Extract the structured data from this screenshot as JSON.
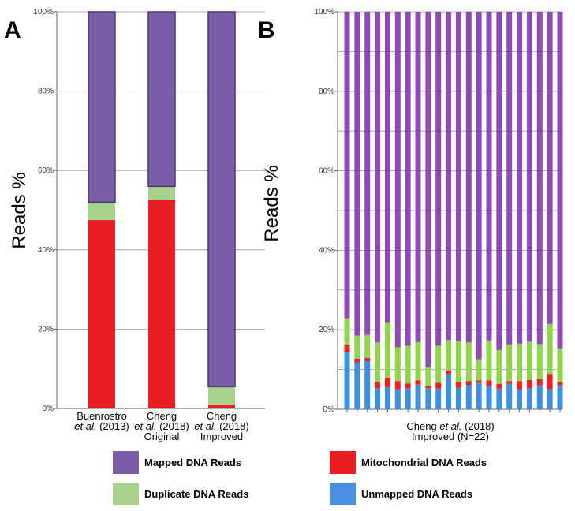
{
  "chart_data": [
    {
      "type": "bar",
      "stacked": true,
      "panel_label": "A",
      "ylabel": "Reads %",
      "ylim": [
        0,
        100
      ],
      "yticks": [
        "0%",
        "20%",
        "40%",
        "60%",
        "80%",
        "100%"
      ],
      "grid": true,
      "categories": [
        [
          "Buenrostro",
          "et al. (2013)"
        ],
        [
          "Cheng",
          "et al. (2018)",
          "Original"
        ],
        [
          "Cheng",
          "et al. (2018)",
          "Improved"
        ]
      ],
      "series": [
        {
          "name": "Unmapped DNA Reads",
          "values": [
            0,
            0,
            0
          ]
        },
        {
          "name": "Mitochondrial DNA Reads",
          "values": [
            47.5,
            52.5,
            1.0
          ]
        },
        {
          "name": "Duplicate DNA Reads",
          "values": [
            4.5,
            3.5,
            4.5
          ]
        },
        {
          "name": "Mapped DNA Reads",
          "values": [
            48.0,
            44.0,
            94.5
          ]
        }
      ]
    },
    {
      "type": "bar",
      "stacked": true,
      "panel_label": "B",
      "ylabel": "Reads %",
      "ylim": [
        0,
        100
      ],
      "yticks": [
        "0%",
        "20%",
        "40%",
        "60%",
        "80%",
        "100%"
      ],
      "grid": true,
      "xlabel": [
        "Cheng et al. (2018)",
        "Improved (N=22)"
      ],
      "series": [
        {
          "name": "Unmapped DNA Reads",
          "values": [
            14.3,
            11.8,
            12.1,
            5.3,
            5.5,
            5.0,
            5.3,
            6.2,
            5.3,
            5.2,
            8.9,
            5.4,
            6.1,
            6.7,
            5.9,
            5.2,
            6.4,
            5.0,
            5.3,
            6.0,
            5.1,
            6.0
          ]
        },
        {
          "name": "Mitochondrial DNA Reads",
          "values": [
            2.0,
            0.9,
            0.8,
            1.6,
            2.5,
            2.1,
            1.2,
            1.1,
            0.6,
            1.5,
            0.9,
            1.5,
            1.0,
            0.6,
            1.4,
            1.2,
            0.7,
            2.1,
            2.1,
            1.7,
            3.8,
            0.9
          ]
        },
        {
          "name": "Duplicate DNA Reads",
          "values": [
            6.6,
            5.8,
            5.8,
            9.9,
            13.9,
            8.5,
            9.5,
            9.6,
            4.8,
            9.3,
            7.6,
            10.3,
            9.7,
            5.3,
            10.0,
            8.5,
            9.2,
            9.4,
            9.6,
            8.7,
            12.6,
            8.4
          ]
        },
        {
          "name": "Mapped DNA Reads",
          "values": [
            77.1,
            81.5,
            81.3,
            83.2,
            78.1,
            84.4,
            84.0,
            83.1,
            89.3,
            84.0,
            82.6,
            82.8,
            83.2,
            87.4,
            82.7,
            85.1,
            83.7,
            83.5,
            83.0,
            83.6,
            78.5,
            84.7
          ]
        }
      ]
    }
  ],
  "legend": [
    {
      "label": "Mapped DNA Reads",
      "color": "#7b5ea7"
    },
    {
      "label": "Mitochondrial DNA Reads",
      "color": "#ec1c24"
    },
    {
      "label": "Duplicate DNA Reads",
      "color": "#a9d18e"
    },
    {
      "label": "Unmapped DNA Reads",
      "color": "#4a90e2"
    }
  ],
  "colors": {
    "mappedB": "#7a2aa8",
    "dupB": "#8fd44a",
    "mitoB": "#ee2222",
    "unmappedB": "#3d8fe0"
  }
}
